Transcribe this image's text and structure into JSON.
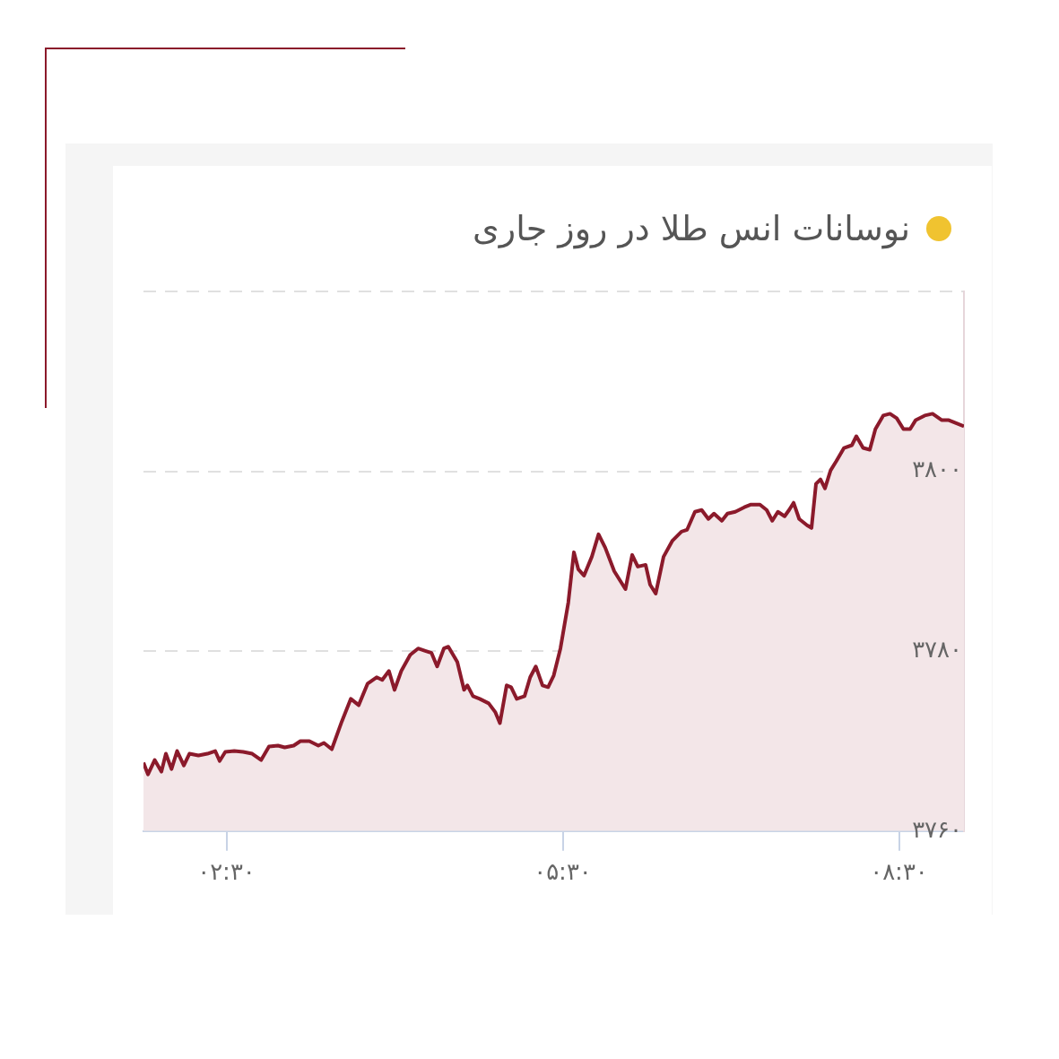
{
  "chart_data": {
    "type": "area",
    "title": "نوسانات انس طلا در روز جاری",
    "x": [
      1.76,
      1.8,
      1.86,
      1.92,
      1.96,
      2.01,
      2.06,
      2.12,
      2.17,
      2.25,
      2.33,
      2.4,
      2.44,
      2.49,
      2.57,
      2.65,
      2.73,
      2.81,
      2.88,
      2.96,
      3.02,
      3.1,
      3.16,
      3.24,
      3.32,
      3.37,
      3.44,
      3.53,
      3.61,
      3.68,
      3.76,
      3.84,
      3.89,
      3.95,
      4.0,
      4.06,
      4.14,
      4.21,
      4.28,
      4.33,
      4.38,
      4.44,
      4.48,
      4.56,
      4.62,
      4.65,
      4.7,
      4.76,
      4.84,
      4.9,
      4.94,
      5.0,
      5.04,
      5.09,
      5.16,
      5.21,
      5.26,
      5.32,
      5.37,
      5.42,
      5.48,
      5.55,
      5.6,
      5.64,
      5.69,
      5.76,
      5.82,
      5.88,
      5.96,
      6.01,
      6.06,
      6.12,
      6.17,
      6.24,
      6.28,
      6.33,
      6.4,
      6.48,
      6.56,
      6.61,
      6.68,
      6.74,
      6.8,
      6.85,
      6.92,
      6.97,
      7.04,
      7.12,
      7.18,
      7.26,
      7.32,
      7.37,
      7.42,
      7.48,
      7.52,
      7.56,
      7.61,
      7.68,
      7.72,
      7.76,
      7.8,
      7.84,
      7.89,
      7.94,
      8.01,
      8.08,
      8.12,
      8.18,
      8.24,
      8.29,
      8.36,
      8.42,
      8.48,
      8.54,
      8.6,
      8.65,
      8.73,
      8.8,
      8.88,
      8.94,
      9.0,
      9.08
    ],
    "values": [
      3767.6,
      3766.3,
      3767.9,
      3766.6,
      3768.6,
      3766.9,
      3768.9,
      3767.3,
      3768.6,
      3768.4,
      3768.6,
      3768.9,
      3767.8,
      3768.8,
      3768.9,
      3768.8,
      3768.6,
      3767.9,
      3769.4,
      3769.5,
      3769.3,
      3769.5,
      3770.0,
      3770.0,
      3769.5,
      3769.8,
      3769.1,
      3772.2,
      3774.7,
      3774.0,
      3776.4,
      3777.1,
      3776.8,
      3777.8,
      3775.7,
      3777.8,
      3779.6,
      3780.3,
      3780.0,
      3779.8,
      3778.3,
      3780.3,
      3780.5,
      3778.8,
      3775.7,
      3776.2,
      3775.0,
      3774.7,
      3774.2,
      3773.2,
      3772.0,
      3776.2,
      3776.0,
      3774.7,
      3775.0,
      3777.1,
      3778.3,
      3776.2,
      3776.0,
      3777.3,
      3780.3,
      3785.4,
      3791.0,
      3789.1,
      3788.4,
      3790.5,
      3793.0,
      3791.5,
      3788.9,
      3787.9,
      3786.9,
      3790.7,
      3789.4,
      3789.6,
      3787.4,
      3786.4,
      3790.5,
      3792.3,
      3793.3,
      3793.5,
      3795.5,
      3795.7,
      3794.7,
      3795.3,
      3794.5,
      3795.3,
      3795.5,
      3796.0,
      3796.3,
      3796.3,
      3795.7,
      3794.5,
      3795.5,
      3795.0,
      3795.7,
      3796.5,
      3794.7,
      3794.0,
      3793.7,
      3798.6,
      3799.1,
      3798.1,
      3800.1,
      3801.1,
      3802.6,
      3802.9,
      3803.9,
      3802.6,
      3802.4,
      3804.7,
      3806.2,
      3806.4,
      3805.9,
      3804.7,
      3804.7,
      3805.7,
      3806.2,
      3806.4,
      3805.7,
      3805.7,
      3805.4,
      3805.0
    ],
    "color": "#8b1a2b",
    "xlim": [
      1.76,
      9.08
    ],
    "xticks": [
      {
        "value": 2.5,
        "label": "۰۲:۳۰"
      },
      {
        "value": 5.5,
        "label": "۰۵:۳۰"
      },
      {
        "value": 8.5,
        "label": "۰۸:۳۰"
      }
    ],
    "ylim": [
      3760,
      3820
    ],
    "yticks": [
      {
        "value": 3760,
        "label": "۳۷۶۰"
      },
      {
        "value": 3780,
        "label": "۳۷۸۰"
      },
      {
        "value": 3800,
        "label": "۳۸۰۰"
      },
      {
        "value": 3820,
        "label": null
      }
    ],
    "grid": "y",
    "legend": false,
    "marker": "none"
  }
}
